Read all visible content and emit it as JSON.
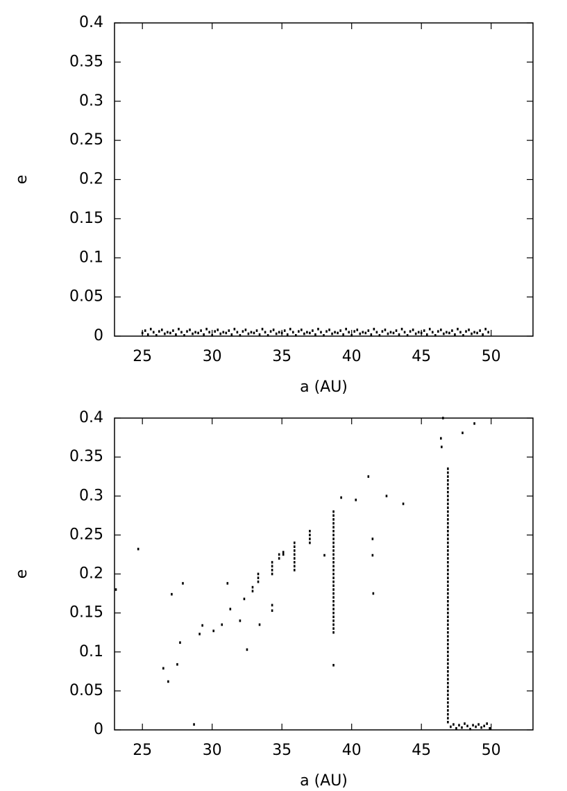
{
  "chart_data": [
    {
      "type": "scatter",
      "xlabel": "a (AU)",
      "ylabel": "e",
      "color": "#000000",
      "xlim": [
        23,
        53
      ],
      "ylim": [
        0,
        0.4
      ],
      "xticks": [
        25,
        30,
        35,
        40,
        45,
        50
      ],
      "yticks": [
        0,
        0.05,
        0.1,
        0.15,
        0.2,
        0.25,
        0.3,
        0.35,
        0.4
      ],
      "x": [
        25,
        25.2,
        25.4,
        25.6,
        25.8,
        26,
        26.2,
        26.4,
        26.6,
        26.8,
        27,
        27.2,
        27.4,
        27.6,
        27.8,
        28,
        28.2,
        28.4,
        28.6,
        28.8,
        29,
        29.2,
        29.4,
        29.6,
        29.8,
        30,
        30.2,
        30.4,
        30.6,
        30.8,
        31,
        31.2,
        31.4,
        31.6,
        31.8,
        32,
        32.2,
        32.4,
        32.6,
        32.8,
        33,
        33.2,
        33.4,
        33.6,
        33.8,
        34,
        34.2,
        34.4,
        34.6,
        34.8,
        35,
        35.2,
        35.4,
        35.6,
        35.8,
        36,
        36.2,
        36.4,
        36.6,
        36.8,
        37,
        37.2,
        37.4,
        37.6,
        37.8,
        38,
        38.2,
        38.4,
        38.6,
        38.8,
        39,
        39.2,
        39.4,
        39.6,
        39.8,
        40,
        40.2,
        40.4,
        40.6,
        40.8,
        41,
        41.2,
        41.4,
        41.6,
        41.8,
        42,
        42.2,
        42.4,
        42.6,
        42.8,
        43,
        43.2,
        43.4,
        43.6,
        43.8,
        44,
        44.2,
        44.4,
        44.6,
        44.8,
        45,
        45.2,
        45.4,
        45.6,
        45.8,
        46,
        46.2,
        46.4,
        46.6,
        46.8,
        47,
        47.2,
        47.4,
        47.6,
        47.8,
        48,
        48.2,
        48.4,
        48.6,
        48.8,
        49,
        49.2,
        49.4,
        49.6,
        49.8
      ],
      "values": [
        0.004,
        0.007,
        0.002,
        0.009,
        0.005,
        0.001,
        0.006,
        0.008,
        0.003,
        0.005,
        0.004,
        0.007,
        0.002,
        0.009,
        0.005,
        0.001,
        0.006,
        0.008,
        0.003,
        0.005,
        0.004,
        0.007,
        0.002,
        0.009,
        0.005,
        0.001,
        0.006,
        0.008,
        0.003,
        0.005,
        0.004,
        0.007,
        0.002,
        0.009,
        0.005,
        0.001,
        0.006,
        0.008,
        0.003,
        0.005,
        0.004,
        0.007,
        0.002,
        0.009,
        0.005,
        0.001,
        0.006,
        0.008,
        0.003,
        0.005,
        0.004,
        0.007,
        0.002,
        0.009,
        0.005,
        0.001,
        0.006,
        0.008,
        0.003,
        0.005,
        0.004,
        0.007,
        0.002,
        0.009,
        0.005,
        0.001,
        0.006,
        0.008,
        0.003,
        0.005,
        0.004,
        0.007,
        0.002,
        0.009,
        0.005,
        0.001,
        0.006,
        0.008,
        0.003,
        0.005,
        0.004,
        0.007,
        0.002,
        0.009,
        0.005,
        0.001,
        0.006,
        0.008,
        0.003,
        0.005,
        0.004,
        0.007,
        0.002,
        0.009,
        0.005,
        0.001,
        0.006,
        0.008,
        0.003,
        0.005,
        0.004,
        0.007,
        0.002,
        0.009,
        0.005,
        0.001,
        0.006,
        0.008,
        0.003,
        0.005,
        0.004,
        0.007,
        0.002,
        0.009,
        0.005,
        0.001,
        0.006,
        0.008,
        0.003,
        0.005,
        0.004,
        0.007,
        0.002,
        0.009,
        0.005
      ]
    },
    {
      "type": "scatter",
      "xlabel": "a (AU)",
      "ylabel": "e",
      "color": "#000000",
      "xlim": [
        23,
        53
      ],
      "ylim": [
        0,
        0.4
      ],
      "xticks": [
        25,
        30,
        35,
        40,
        45,
        50
      ],
      "yticks": [
        0,
        0.05,
        0.1,
        0.15,
        0.2,
        0.25,
        0.3,
        0.35,
        0.4
      ],
      "x": [
        23.1,
        24.7,
        26.5,
        26.85,
        27.1,
        27.5,
        27.7,
        27.9,
        28.7,
        29.1,
        29.3,
        30.1,
        30.7,
        31.1,
        31.3,
        32.0,
        32.3,
        32.5,
        32.9,
        32.9,
        33.4,
        34.3,
        34.3,
        38.05,
        38.7,
        39.25,
        40.3,
        41.2,
        41.5,
        41.5,
        41.55,
        42.5,
        43.7,
        46.4,
        46.45,
        46.55,
        47.95,
        48.8,
        33.3,
        33.3,
        33.3,
        34.3,
        34.3,
        34.3,
        34.3,
        34.8,
        34.8,
        35.1,
        35.1,
        35.9,
        35.9,
        35.9,
        35.9,
        35.9,
        35.9,
        35.9,
        35.9,
        37,
        37,
        37,
        37,
        38.7,
        38.7,
        38.7,
        38.7,
        38.7,
        38.7,
        38.7,
        38.7,
        38.7,
        38.7,
        38.7,
        38.7,
        38.7,
        38.7,
        38.7,
        38.7,
        38.7,
        38.7,
        38.7,
        38.7,
        38.7,
        38.7,
        38.7,
        38.7,
        38.7,
        38.7,
        38.7,
        38.7,
        38.7,
        38.7,
        38.7,
        38.7,
        46.9,
        46.9,
        46.9,
        46.9,
        46.9,
        46.9,
        46.9,
        46.9,
        46.9,
        46.9,
        46.9,
        46.9,
        46.9,
        46.9,
        46.9,
        46.9,
        46.9,
        46.9,
        46.9,
        46.9,
        46.9,
        46.9,
        46.9,
        46.9,
        46.9,
        46.9,
        46.9,
        46.9,
        46.9,
        46.9,
        46.9,
        46.9,
        46.9,
        46.9,
        46.9,
        46.9,
        46.9,
        46.9,
        46.9,
        46.9,
        46.9,
        46.9,
        46.9,
        46.9,
        46.9,
        46.9,
        46.9,
        46.9,
        46.9,
        46.9,
        46.9,
        46.9,
        46.9,
        46.9,
        46.9,
        46.9,
        46.9,
        46.9,
        46.9,
        46.9,
        46.9,
        46.9,
        46.9,
        46.9,
        46.9,
        46.9,
        47.1,
        47.3,
        47.5,
        47.7,
        47.9,
        48.1,
        48.3,
        48.5,
        48.7,
        48.9,
        49.1,
        49.3,
        49.5,
        49.7,
        49.9
      ],
      "values": [
        0.18,
        0.232,
        0.079,
        0.062,
        0.174,
        0.084,
        0.112,
        0.188,
        0.007,
        0.123,
        0.134,
        0.127,
        0.135,
        0.188,
        0.155,
        0.14,
        0.168,
        0.103,
        0.178,
        0.183,
        0.135,
        0.153,
        0.16,
        0.224,
        0.083,
        0.298,
        0.295,
        0.325,
        0.245,
        0.224,
        0.175,
        0.3,
        0.29,
        0.374,
        0.363,
        0.4,
        0.381,
        0.393,
        0.19,
        0.195,
        0.2,
        0.2,
        0.205,
        0.21,
        0.215,
        0.22,
        0.225,
        0.225,
        0.228,
        0.205,
        0.21,
        0.215,
        0.22,
        0.225,
        0.23,
        0.235,
        0.24,
        0.24,
        0.245,
        0.25,
        0.255,
        0.125,
        0.13,
        0.135,
        0.14,
        0.145,
        0.15,
        0.155,
        0.16,
        0.165,
        0.17,
        0.175,
        0.18,
        0.185,
        0.19,
        0.195,
        0.2,
        0.205,
        0.21,
        0.215,
        0.22,
        0.225,
        0.23,
        0.235,
        0.24,
        0.245,
        0.25,
        0.255,
        0.26,
        0.265,
        0.27,
        0.275,
        0.28,
        0.01,
        0.015,
        0.02,
        0.025,
        0.03,
        0.035,
        0.04,
        0.045,
        0.05,
        0.055,
        0.06,
        0.065,
        0.07,
        0.075,
        0.08,
        0.085,
        0.09,
        0.095,
        0.1,
        0.105,
        0.11,
        0.115,
        0.12,
        0.125,
        0.13,
        0.135,
        0.14,
        0.145,
        0.15,
        0.155,
        0.16,
        0.165,
        0.17,
        0.175,
        0.18,
        0.185,
        0.19,
        0.195,
        0.2,
        0.205,
        0.21,
        0.215,
        0.22,
        0.225,
        0.23,
        0.235,
        0.24,
        0.245,
        0.25,
        0.255,
        0.26,
        0.265,
        0.27,
        0.275,
        0.28,
        0.285,
        0.29,
        0.295,
        0.3,
        0.305,
        0.31,
        0.315,
        0.32,
        0.325,
        0.33,
        0.335,
        0.004,
        0.007,
        0.002,
        0.006,
        0.003,
        0.008,
        0.005,
        0.001,
        0.006,
        0.004,
        0.007,
        0.003,
        0.005,
        0.008,
        0.002
      ]
    }
  ]
}
